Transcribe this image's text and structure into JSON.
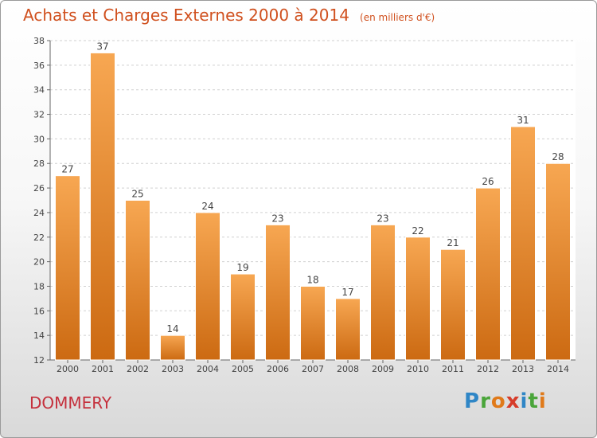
{
  "header": {
    "title": "Achats et Charges Externes 2000 à 2014",
    "unit": "(en milliers d'€)"
  },
  "location": "DOMMERY",
  "logo": {
    "letters": [
      "P",
      "r",
      "o",
      "x",
      "i",
      "t",
      "i"
    ],
    "colors": [
      "#2f86c6",
      "#4aa53a",
      "#e07a1a",
      "#d63c2a",
      "#2f86c6",
      "#4aa53a",
      "#e07a1a"
    ]
  },
  "colors": {
    "bar_top": "#f7a752",
    "bar_bottom": "#cc6a12",
    "text": "#d0501e",
    "location": "#c5303c"
  },
  "chart_data": {
    "type": "bar",
    "title": "Achats et Charges Externes 2000 à 2014",
    "subtitle": "(en milliers d'€)",
    "categories": [
      "2000",
      "2001",
      "2002",
      "2003",
      "2004",
      "2005",
      "2006",
      "2007",
      "2008",
      "2009",
      "2010",
      "2011",
      "2012",
      "2013",
      "2014"
    ],
    "values": [
      27,
      37,
      25,
      14,
      24,
      19,
      23,
      18,
      17,
      23,
      22,
      21,
      26,
      31,
      28
    ],
    "ylim": [
      12,
      38
    ],
    "yticks": [
      12,
      14,
      16,
      18,
      20,
      22,
      24,
      26,
      28,
      30,
      32,
      34,
      36,
      38
    ],
    "grid": true,
    "xlabel": "",
    "ylabel": ""
  }
}
